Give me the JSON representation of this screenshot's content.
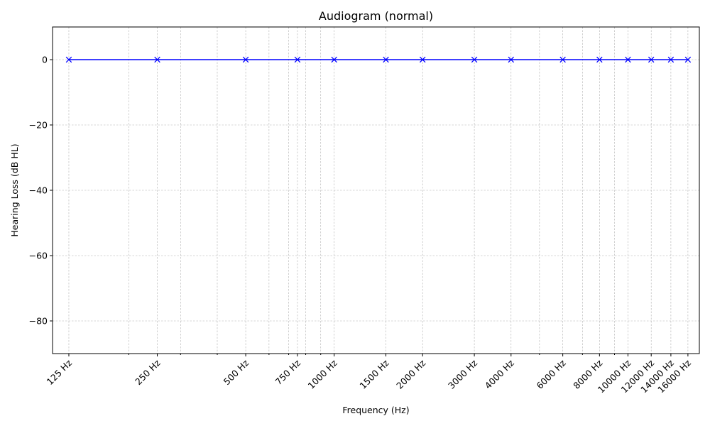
{
  "chart_data": {
    "type": "line",
    "title": "Audiogram (normal)",
    "xlabel": "Frequency (Hz)",
    "ylabel": "Hearing Loss (dB HL)",
    "x_scale": "log",
    "xlim": [
      110,
      17500
    ],
    "ylim": [
      -90,
      10
    ],
    "grid": true,
    "x_ticks": [
      125,
      250,
      500,
      750,
      1000,
      1500,
      2000,
      3000,
      4000,
      6000,
      8000,
      10000,
      12000,
      14000,
      16000
    ],
    "x_tick_labels": [
      "125 Hz",
      "250 Hz",
      "500 Hz",
      "750 Hz",
      "1000 Hz",
      "1500 Hz",
      "2000 Hz",
      "3000 Hz",
      "4000 Hz",
      "6000 Hz",
      "8000 Hz",
      "10000 Hz",
      "12000 Hz",
      "14000 Hz",
      "16000 Hz"
    ],
    "x_minor_ticks": [
      200,
      300,
      400,
      600,
      700,
      800,
      900,
      5000,
      7000,
      9000
    ],
    "y_ticks": [
      0,
      -20,
      -40,
      -60,
      -80
    ],
    "y_tick_labels": [
      "0",
      "−20",
      "−40",
      "−60",
      "−80"
    ],
    "series": [
      {
        "color": "#0000ff",
        "marker": "x",
        "x": [
          125,
          250,
          500,
          750,
          1000,
          1500,
          2000,
          3000,
          4000,
          6000,
          8000,
          10000,
          12000,
          14000,
          16000
        ],
        "y": [
          0,
          0,
          0,
          0,
          0,
          0,
          0,
          0,
          0,
          0,
          0,
          0,
          0,
          0,
          0
        ]
      }
    ]
  }
}
